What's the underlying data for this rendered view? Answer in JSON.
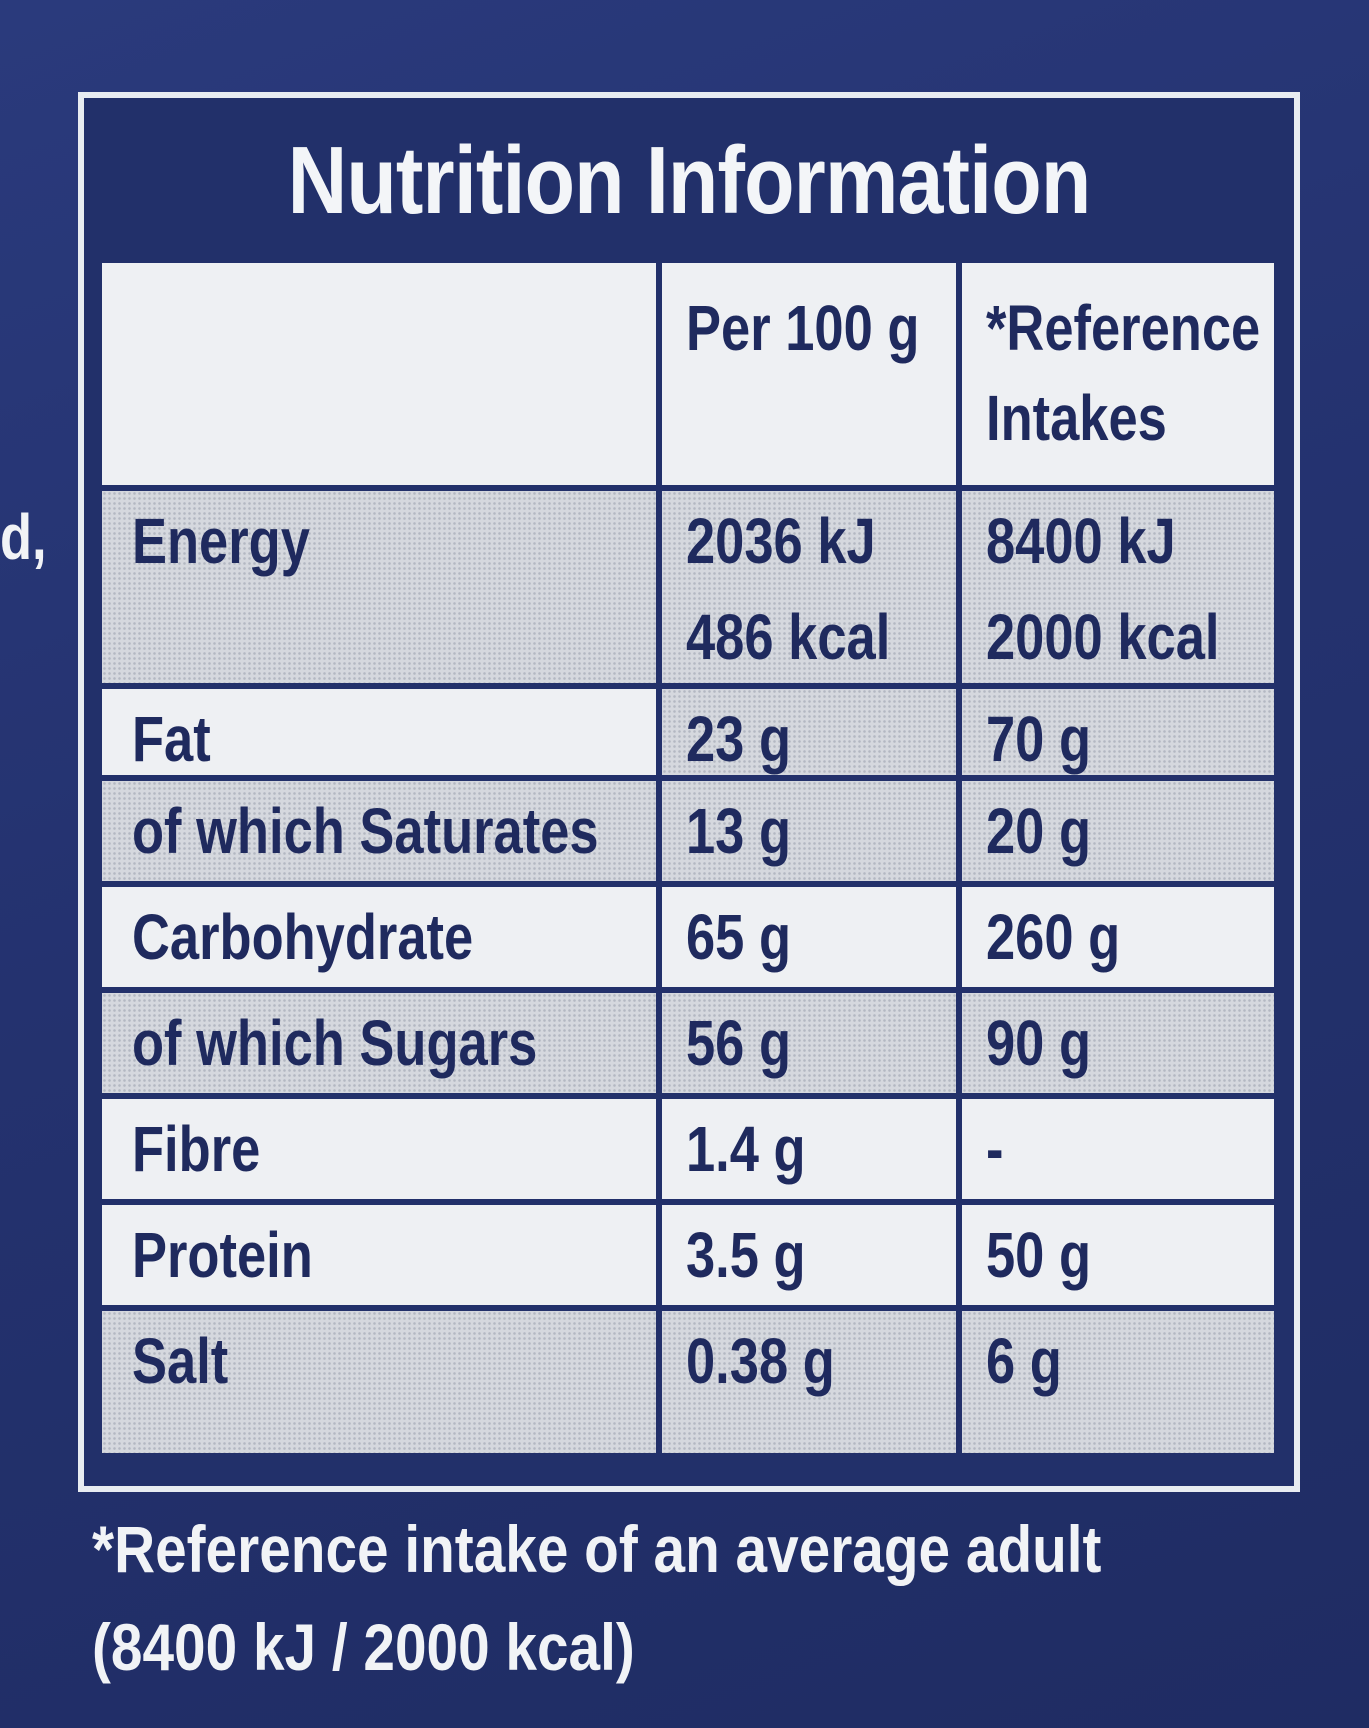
{
  "edge_fragment": "d,",
  "title": "Nutrition Information",
  "columns": {
    "per100": "Per 100 g",
    "reference_line1": "*Reference",
    "reference_line2": "Intakes"
  },
  "energy": {
    "label": "Energy",
    "per100_kj": "2036 kJ",
    "per100_kcal": "486 kcal",
    "ref_kj": "8400 kJ",
    "ref_kcal": "2000 kcal"
  },
  "rows": [
    {
      "label": "Fat",
      "per100": "23 g",
      "ref": "70 g"
    },
    {
      "label": "of which Saturates",
      "per100": "13 g",
      "ref": "20 g"
    },
    {
      "label": "Carbohydrate",
      "per100": "65 g",
      "ref": "260 g"
    },
    {
      "label": "of which Sugars",
      "per100": "56 g",
      "ref": "90 g"
    },
    {
      "label": "Fibre",
      "per100": "1.4 g",
      "ref": "-"
    },
    {
      "label": "Protein",
      "per100": "3.5 g",
      "ref": "50 g"
    },
    {
      "label": "Salt",
      "per100": "0.38 g",
      "ref": "6 g"
    }
  ],
  "footnote": {
    "line1": "*Reference intake of an average adult",
    "line2": "(8400 kJ / 2000 kcal)"
  }
}
